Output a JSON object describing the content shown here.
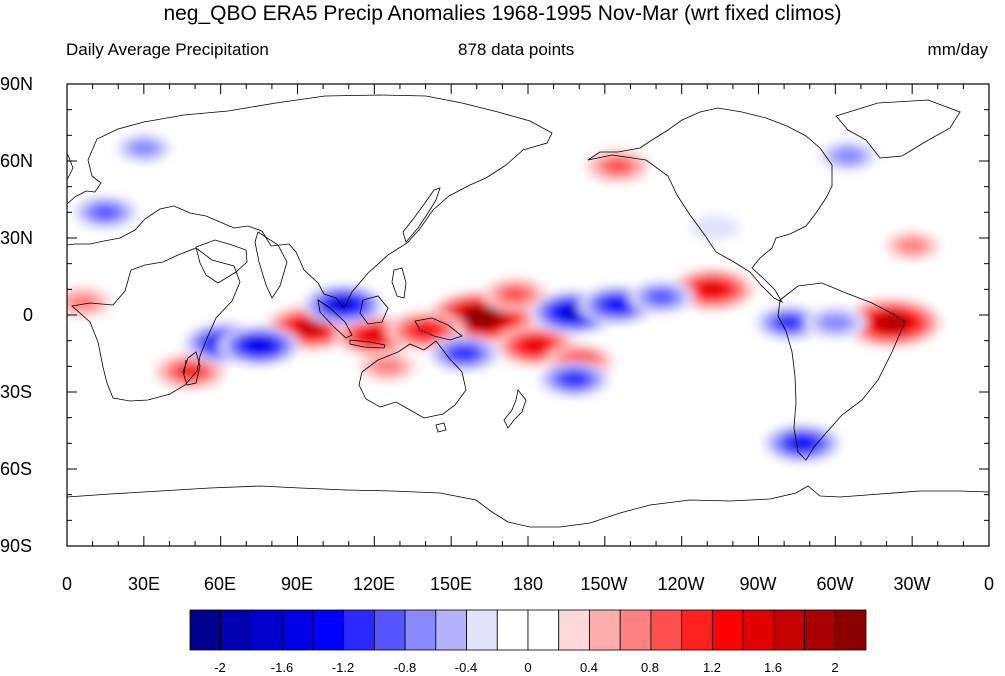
{
  "title": "neg_QBO ERA5 Precip Anomalies 1968-1995 Nov-Mar (wrt fixed climos)",
  "subtitle_left": "Daily Average Precipitation",
  "subtitle_center": "878 data points",
  "subtitle_right": "mm/day",
  "map": {
    "projection": "cylindrical equidistant",
    "lon_range": [
      0,
      360
    ],
    "lat_range": [
      -90,
      90
    ],
    "lat_ticks": [
      "90N",
      "60N",
      "30N",
      "0",
      "30S",
      "60S",
      "90S"
    ],
    "lon_ticks": [
      "0",
      "30E",
      "60E",
      "90E",
      "120E",
      "150E",
      "180",
      "150W",
      "120W",
      "90W",
      "60W",
      "30W",
      "0"
    ]
  },
  "colorbar": {
    "colors": [
      "#00008f",
      "#0000b2",
      "#0000cc",
      "#0000e6",
      "#0000ff",
      "#2a2aff",
      "#5555ff",
      "#8888ff",
      "#b2b2ff",
      "#e3e3ff",
      "#ffffff",
      "#ffffff",
      "#ffd9d9",
      "#ffadad",
      "#ff8080",
      "#ff5050",
      "#ff2020",
      "#ff0000",
      "#e00000",
      "#c40000",
      "#a80000",
      "#8b0000"
    ],
    "tick_labels": [
      "-2",
      "-1.6",
      "-1.2",
      "-0.8",
      "-0.4",
      "0",
      "0.4",
      "0.8",
      "1.2",
      "1.6",
      "2"
    ]
  },
  "chart_data": {
    "type": "heatmap",
    "variable": "precipitation anomaly",
    "units": "mm/day",
    "levels": [
      -2.0,
      -1.8,
      -1.6,
      -1.4,
      -1.2,
      -1.0,
      -0.8,
      -0.6,
      -0.4,
      -0.2,
      0,
      0.2,
      0.4,
      0.6,
      0.8,
      1.0,
      1.2,
      1.4,
      1.6,
      1.8,
      2.0
    ],
    "anomaly_features": [
      {
        "lon": 162,
        "lat": -1,
        "value": 2.2
      },
      {
        "lon": 175,
        "lat": 8,
        "value": 0.8
      },
      {
        "lon": 183,
        "lat": -12,
        "value": 1.3
      },
      {
        "lon": 200,
        "lat": -18,
        "value": 0.9
      },
      {
        "lon": 95,
        "lat": -5,
        "value": 1.6
      },
      {
        "lon": 120,
        "lat": -8,
        "value": 1.3
      },
      {
        "lon": 140,
        "lat": -6,
        "value": 1.2
      },
      {
        "lon": 252,
        "lat": 10,
        "value": 1.4
      },
      {
        "lon": 322,
        "lat": -3,
        "value": 1.9
      },
      {
        "lon": 48,
        "lat": -22,
        "value": 1.0
      },
      {
        "lon": 125,
        "lat": -20,
        "value": 0.6
      },
      {
        "lon": 215,
        "lat": 58,
        "value": 0.8
      },
      {
        "lon": 330,
        "lat": 27,
        "value": 0.5
      },
      {
        "lon": 6,
        "lat": 5,
        "value": 0.6
      },
      {
        "lon": 108,
        "lat": 4,
        "value": -1.3
      },
      {
        "lon": 62,
        "lat": -11,
        "value": -1.4
      },
      {
        "lon": 75,
        "lat": -12,
        "value": -1.3
      },
      {
        "lon": 198,
        "lat": 1,
        "value": -1.5
      },
      {
        "lon": 215,
        "lat": 4,
        "value": -1.2
      },
      {
        "lon": 232,
        "lat": 7,
        "value": -0.8
      },
      {
        "lon": 155,
        "lat": -15,
        "value": -1.0
      },
      {
        "lon": 198,
        "lat": -25,
        "value": -1.0
      },
      {
        "lon": 282,
        "lat": -3,
        "value": -0.9
      },
      {
        "lon": 300,
        "lat": -3,
        "value": -0.7
      },
      {
        "lon": 287,
        "lat": -50,
        "value": -1.2
      },
      {
        "lon": 15,
        "lat": 40,
        "value": -0.8
      },
      {
        "lon": 30,
        "lat": 65,
        "value": -0.5
      },
      {
        "lon": 305,
        "lat": 62,
        "value": -0.6
      },
      {
        "lon": 253,
        "lat": 34,
        "value": -0.3
      }
    ]
  }
}
